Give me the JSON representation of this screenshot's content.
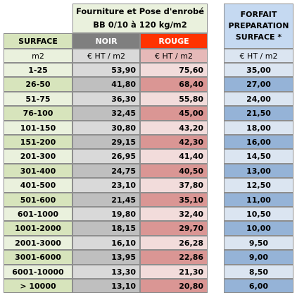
{
  "header": {
    "title_line1": "Fourniture et Pose d'enrobé",
    "title_line2": "BB 0/10 à 120 kg/m2",
    "forfait_line1": "FORFAIT",
    "forfait_line2": "PREPARATION",
    "forfait_line3": "SURFACE *",
    "surface": "SURFACE",
    "noir": "NOIR",
    "rouge": "ROUGE",
    "unit_surface": "m2",
    "unit_noir": "€ HT / m2",
    "unit_rouge": "€ HT / m2",
    "unit_forfait": "€ HT / m2"
  },
  "rows": [
    {
      "surface": "1-25",
      "noir": "53,90",
      "rouge": "75,60",
      "forfait": "35,00"
    },
    {
      "surface": "26-50",
      "noir": "41,80",
      "rouge": "68,40",
      "forfait": "27,00"
    },
    {
      "surface": "51-75",
      "noir": "36,30",
      "rouge": "55,80",
      "forfait": "24,00"
    },
    {
      "surface": "76-100",
      "noir": "32,45",
      "rouge": "45,00",
      "forfait": "21,50"
    },
    {
      "surface": "101-150",
      "noir": "30,80",
      "rouge": "43,20",
      "forfait": "18,00"
    },
    {
      "surface": "151-200",
      "noir": "29,15",
      "rouge": "42,30",
      "forfait": "16,00"
    },
    {
      "surface": "201-300",
      "noir": "26,95",
      "rouge": "41,40",
      "forfait": "14,50"
    },
    {
      "surface": "301-400",
      "noir": "24,75",
      "rouge": "40,50",
      "forfait": "13,00"
    },
    {
      "surface": "401-500",
      "noir": "23,10",
      "rouge": "37,80",
      "forfait": "12,50"
    },
    {
      "surface": "501-600",
      "noir": "21,45",
      "rouge": "35,10",
      "forfait": "11,00"
    },
    {
      "surface": "601-1000",
      "noir": "19,80",
      "rouge": "32,40",
      "forfait": "10,50"
    },
    {
      "surface": "1001-2000",
      "noir": "18,15",
      "rouge": "29,70",
      "forfait": "10,00"
    },
    {
      "surface": "2001-3000",
      "noir": "16,10",
      "rouge": "26,28",
      "forfait": "9,50"
    },
    {
      "surface": "3001-6000",
      "noir": "13,95",
      "rouge": "22,86",
      "forfait": "9,00"
    },
    {
      "surface": "6001-10000",
      "noir": "13,30",
      "rouge": "21,30",
      "forfait": "8,50"
    },
    {
      "surface": "> 10000",
      "noir": "13,10",
      "rouge": "20,80",
      "forfait": "6,00"
    }
  ]
}
